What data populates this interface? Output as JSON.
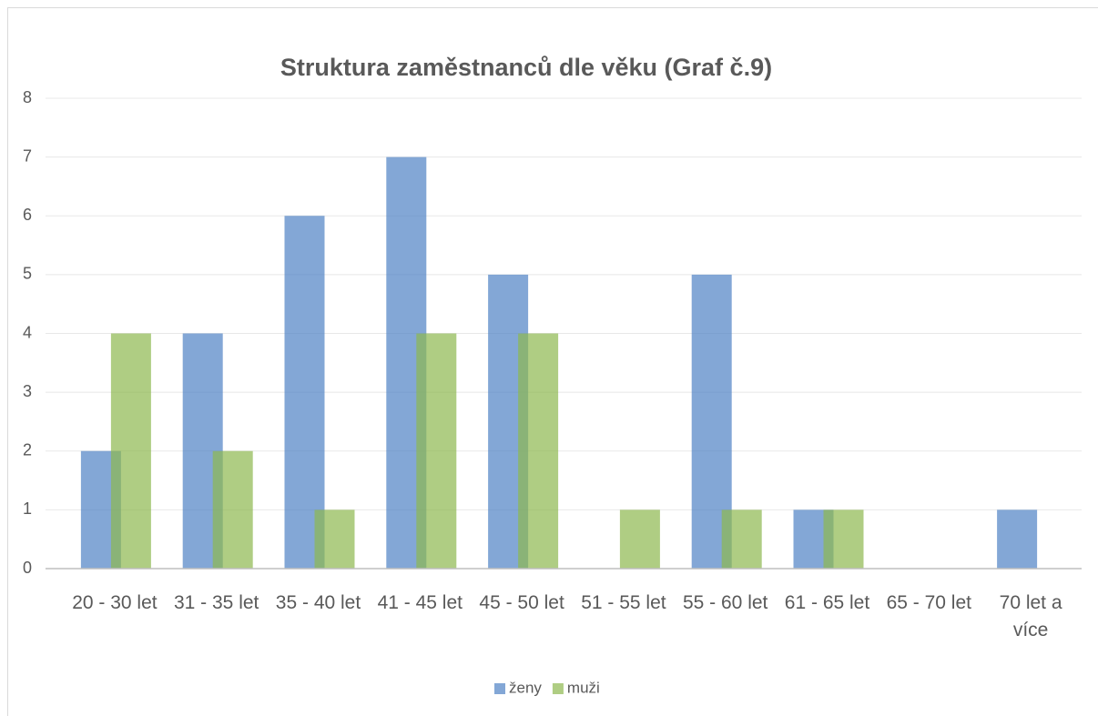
{
  "chart_data": {
    "type": "bar",
    "title": "Struktura zaměstnanců dle věku (Graf č.9)",
    "categories": [
      "20 - 30 let",
      "31 - 35 let",
      "35 - 40 let",
      "41 - 45 let",
      "45 - 50 let",
      "51 - 55 let",
      "55 - 60 let",
      "61 - 65 let",
      "65 - 70 let",
      "70 let a více"
    ],
    "series": [
      {
        "name": "ženy",
        "color": "#4f81c4",
        "values": [
          2,
          4,
          6,
          7,
          5,
          0,
          5,
          1,
          0,
          1
        ]
      },
      {
        "name": "muži",
        "color": "#8db84f",
        "values": [
          4,
          2,
          1,
          4,
          4,
          1,
          1,
          1,
          0,
          0
        ]
      }
    ],
    "ylim": [
      0,
      8
    ],
    "yticks": [
      0,
      1,
      2,
      3,
      4,
      5,
      6,
      7,
      8
    ],
    "grid": true,
    "legend": "bottom"
  }
}
